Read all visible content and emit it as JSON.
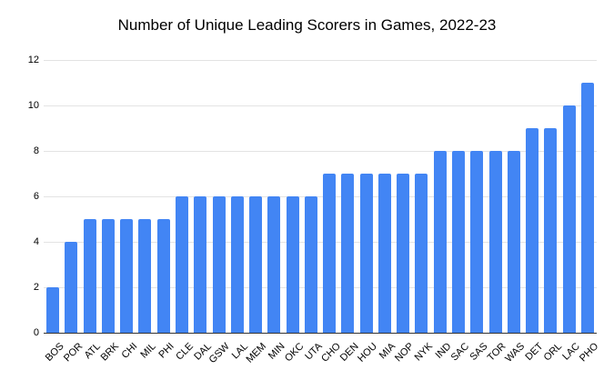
{
  "chart_data": {
    "type": "bar",
    "title": "Number of Unique Leading Scorers in Games, 2022-23",
    "categories": [
      "BOS",
      "POR",
      "ATL",
      "BRK",
      "CHI",
      "MIL",
      "PHI",
      "CLE",
      "DAL",
      "GSW",
      "LAL",
      "MEM",
      "MIN",
      "OKC",
      "UTA",
      "CHO",
      "DEN",
      "HOU",
      "MIA",
      "NOP",
      "NYK",
      "IND",
      "SAC",
      "SAS",
      "TOR",
      "WAS",
      "DET",
      "ORL",
      "LAC",
      "PHO"
    ],
    "values": [
      2,
      4,
      5,
      5,
      5,
      5,
      5,
      6,
      6,
      6,
      6,
      6,
      6,
      6,
      6,
      7,
      7,
      7,
      7,
      7,
      7,
      8,
      8,
      8,
      8,
      8,
      9,
      9,
      10,
      11
    ],
    "xlabel": "",
    "ylabel": "",
    "ylim": [
      0,
      12
    ],
    "yticks": [
      0,
      2,
      4,
      6,
      8,
      10,
      12
    ],
    "grid": true,
    "legend": "none",
    "colors": {
      "bar": "#4285f4",
      "gridline": "#e3e3e3",
      "axis_line": "#333333",
      "label": "#000000",
      "background": "#ffffff"
    }
  }
}
